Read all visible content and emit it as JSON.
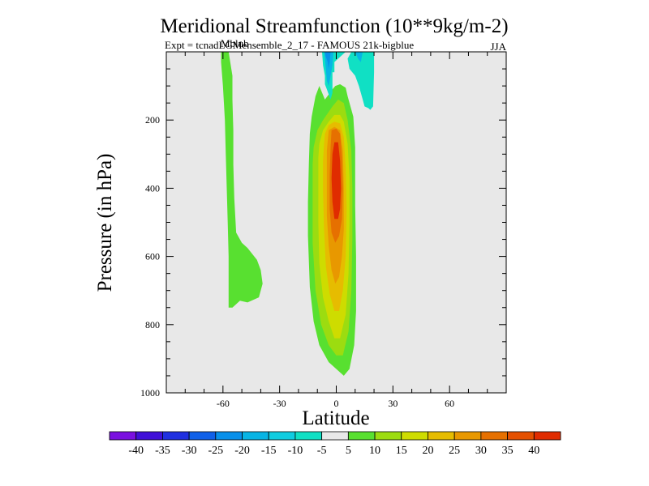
{
  "chart_data": {
    "type": "contour",
    "title": "Meridional Streamfunction (10**9kg/m-2)",
    "subtitle": "Expt = tcnadLGMensemble_2_17 - FAMOUS 21k-bigblue",
    "subtitle_overlap": "Mblub",
    "season": "JJA",
    "xlabel": "Latitude",
    "ylabel": "Pressure (in hPa)",
    "xlim": [
      -90,
      90
    ],
    "ylim": [
      1000,
      0
    ],
    "xticks": [
      -60,
      -30,
      0,
      30,
      60
    ],
    "xtick_labels": [
      "-60",
      "-30",
      "0",
      "30",
      "60"
    ],
    "yticks": [
      200,
      400,
      600,
      800,
      1000
    ],
    "ytick_labels": [
      "200",
      "400",
      "600",
      "800",
      "1000"
    ],
    "colorbar": {
      "labels": [
        "-40",
        "-35",
        "-30",
        "-25",
        "-20",
        "-15",
        "-10",
        "-5",
        "5",
        "10",
        "15",
        "20",
        "25",
        "30",
        "35",
        "40"
      ],
      "colors": [
        "#7a10e0",
        "#4010d8",
        "#2030e0",
        "#1060e8",
        "#0890ea",
        "#08b4e4",
        "#10cce0",
        "#10e0c4",
        "#e8e8e8",
        "#58e030",
        "#9cdc10",
        "#cedc00",
        "#e6bc00",
        "#e89800",
        "#e67000",
        "#e45000",
        "#e02c00"
      ]
    },
    "background_color": "#e8e8e8",
    "regions": [
      {
        "name": "southern-cell-outer",
        "level": "5 to 10",
        "color": "#58e030",
        "polygon": [
          [
            -61,
            0
          ],
          [
            -57,
            0
          ],
          [
            -55,
            70
          ],
          [
            -55,
            140
          ],
          [
            -54.5,
            230
          ],
          [
            -54.5,
            330
          ],
          [
            -54,
            430
          ],
          [
            -53,
            530
          ],
          [
            -50,
            560
          ],
          [
            -47,
            575
          ],
          [
            -42,
            610
          ],
          [
            -40,
            640
          ],
          [
            -39,
            680
          ],
          [
            -41,
            720
          ],
          [
            -47,
            735
          ],
          [
            -51,
            730
          ],
          [
            -55,
            750
          ],
          [
            -57,
            750
          ],
          [
            -57,
            690
          ],
          [
            -57,
            600
          ],
          [
            -57.5,
            500
          ],
          [
            -58,
            400
          ],
          [
            -58.5,
            300
          ],
          [
            -59,
            200
          ],
          [
            -60,
            100
          ],
          [
            -61,
            30
          ]
        ]
      },
      {
        "name": "northern-cell-5-10",
        "level": "5 to 10",
        "color": "#58e030",
        "polygon": [
          [
            -13,
            190
          ],
          [
            -11,
            130
          ],
          [
            -9,
            100
          ],
          [
            -6,
            140
          ],
          [
            -4,
            125
          ],
          [
            -2,
            110
          ],
          [
            -0.5,
            100
          ],
          [
            2,
            95
          ],
          [
            5,
            105
          ],
          [
            6,
            130
          ],
          [
            9,
            190
          ],
          [
            10,
            280
          ],
          [
            10,
            450
          ],
          [
            10.5,
            600
          ],
          [
            10.5,
            760
          ],
          [
            9.5,
            860
          ],
          [
            7,
            930
          ],
          [
            4,
            950
          ],
          [
            0,
            930
          ],
          [
            -4,
            910
          ],
          [
            -9,
            860
          ],
          [
            -12,
            790
          ],
          [
            -14,
            690
          ],
          [
            -15,
            540
          ],
          [
            -15,
            440
          ],
          [
            -14.5,
            330
          ],
          [
            -14,
            240
          ]
        ]
      },
      {
        "name": "northern-cell-10-15",
        "level": "10 to 15",
        "color": "#9cdc10",
        "polygon": [
          [
            -12,
            280
          ],
          [
            -10,
            230
          ],
          [
            -7,
            200
          ],
          [
            -2,
            160
          ],
          [
            1,
            140
          ],
          [
            4,
            150
          ],
          [
            6,
            200
          ],
          [
            8,
            290
          ],
          [
            8.5,
            400
          ],
          [
            8.5,
            550
          ],
          [
            8,
            700
          ],
          [
            6.5,
            820
          ],
          [
            3.5,
            890
          ],
          [
            0,
            890
          ],
          [
            -4,
            860
          ],
          [
            -8,
            800
          ],
          [
            -11,
            700
          ],
          [
            -12.5,
            560
          ],
          [
            -12.5,
            420
          ],
          [
            -12.5,
            330
          ]
        ]
      },
      {
        "name": "northern-cell-15-20",
        "level": "15 to 20",
        "color": "#cedc00",
        "polygon": [
          [
            -9,
            270
          ],
          [
            -7,
            230
          ],
          [
            -4,
            205
          ],
          [
            -1,
            185
          ],
          [
            2,
            185
          ],
          [
            4,
            205
          ],
          [
            6,
            270
          ],
          [
            7,
            370
          ],
          [
            7,
            500
          ],
          [
            6.5,
            650
          ],
          [
            5,
            770
          ],
          [
            2,
            840
          ],
          [
            -1,
            840
          ],
          [
            -4,
            790
          ],
          [
            -7,
            720
          ],
          [
            -9,
            620
          ],
          [
            -9.5,
            500
          ],
          [
            -9.5,
            380
          ],
          [
            -9.5,
            310
          ]
        ]
      },
      {
        "name": "northern-cell-20-25",
        "level": "20 to 25",
        "color": "#e6bc00",
        "polygon": [
          [
            -6,
            240
          ],
          [
            -4,
            215
          ],
          [
            -1,
            205
          ],
          [
            2,
            210
          ],
          [
            4,
            250
          ],
          [
            5,
            340
          ],
          [
            5.5,
            460
          ],
          [
            5,
            600
          ],
          [
            3.5,
            700
          ],
          [
            1.5,
            760
          ],
          [
            -1,
            760
          ],
          [
            -3.5,
            710
          ],
          [
            -5.5,
            630
          ],
          [
            -6.5,
            520
          ],
          [
            -7,
            410
          ],
          [
            -7,
            320
          ],
          [
            -6.5,
            270
          ]
        ]
      },
      {
        "name": "northern-cell-25-30",
        "level": "25 to 30",
        "color": "#e89800",
        "polygon": [
          [
            -4,
            230
          ],
          [
            -1,
            220
          ],
          [
            2,
            230
          ],
          [
            3.5,
            290
          ],
          [
            4,
            400
          ],
          [
            4,
            520
          ],
          [
            3,
            600
          ],
          [
            1.5,
            660
          ],
          [
            -0.5,
            680
          ],
          [
            -2.5,
            640
          ],
          [
            -4,
            570
          ],
          [
            -5,
            480
          ],
          [
            -5,
            380
          ],
          [
            -5,
            290
          ]
        ]
      },
      {
        "name": "northern-cell-30-35",
        "level": "30 to 35",
        "color": "#e67000",
        "polygon": [
          [
            -2.5,
            230
          ],
          [
            0,
            225
          ],
          [
            2,
            240
          ],
          [
            3,
            310
          ],
          [
            3.5,
            400
          ],
          [
            3,
            490
          ],
          [
            1.5,
            540
          ],
          [
            -0.5,
            560
          ],
          [
            -2.5,
            530
          ],
          [
            -3.5,
            460
          ],
          [
            -3.5,
            360
          ],
          [
            -3,
            280
          ]
        ]
      },
      {
        "name": "northern-cell-35-40",
        "level": "35 to 40",
        "color": "#e02c00",
        "polygon": [
          [
            -1,
            265
          ],
          [
            1,
            265
          ],
          [
            2,
            320
          ],
          [
            2.5,
            400
          ],
          [
            2,
            460
          ],
          [
            1,
            490
          ],
          [
            -1,
            490
          ],
          [
            -2,
            440
          ],
          [
            -2.5,
            370
          ],
          [
            -2,
            300
          ]
        ]
      },
      {
        "name": "upper-branch-minus5",
        "level": "-10 to -5",
        "color": "#10e0c4",
        "polygon": [
          [
            -7,
            0
          ],
          [
            5,
            0
          ],
          [
            -1,
            30
          ],
          [
            -1,
            40
          ],
          [
            -1,
            60
          ],
          [
            -2,
            60
          ],
          [
            -2,
            120
          ],
          [
            -3,
            140
          ],
          [
            -4,
            125
          ],
          [
            -5,
            110
          ],
          [
            -6,
            95
          ],
          [
            -6,
            70
          ],
          [
            -7,
            40
          ],
          [
            -7.5,
            0
          ]
        ]
      },
      {
        "name": "upper-branch-minus10",
        "level": "-15 to -10",
        "color": "#08b4e4",
        "polygon": [
          [
            -6.5,
            0
          ],
          [
            -1.5,
            0
          ],
          [
            -2,
            40
          ],
          [
            -3,
            70
          ],
          [
            -4,
            100
          ],
          [
            -5,
            85
          ],
          [
            -5.5,
            50
          ],
          [
            -6,
            20
          ]
        ]
      },
      {
        "name": "upper-branch-minus15",
        "level": "-20 to -15",
        "color": "#0890ea",
        "polygon": [
          [
            -6,
            0
          ],
          [
            -3,
            0
          ],
          [
            -3.5,
            30
          ],
          [
            -4,
            50
          ],
          [
            -4.5,
            30
          ],
          [
            -5.5,
            15
          ]
        ]
      },
      {
        "name": "tropical-minus5",
        "level": "-10 to -5",
        "color": "#10e0c4",
        "polygon": [
          [
            6,
            20
          ],
          [
            8,
            0
          ],
          [
            20,
            0
          ],
          [
            20,
            60
          ],
          [
            19.5,
            160
          ],
          [
            18,
            170
          ],
          [
            17,
            165
          ],
          [
            15,
            160
          ],
          [
            14,
            140
          ],
          [
            12,
            100
          ],
          [
            10,
            70
          ],
          [
            7,
            50
          ]
        ]
      },
      {
        "name": "tropical-minus10",
        "level": "-15 to -10",
        "color": "#08b4e4",
        "polygon": [
          [
            10,
            0
          ],
          [
            14,
            0
          ],
          [
            13,
            30
          ],
          [
            11.5,
            20
          ]
        ]
      }
    ]
  }
}
